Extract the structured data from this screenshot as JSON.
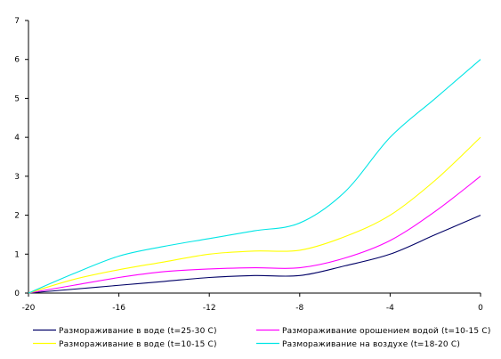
{
  "chart_data": {
    "type": "line",
    "title": "",
    "xlabel": "",
    "ylabel": "",
    "xlim": [
      -20,
      0
    ],
    "ylim": [
      0,
      7
    ],
    "x_ticks": [
      "-20",
      "-16",
      "-12",
      "-8",
      "-4",
      "0"
    ],
    "y_ticks": [
      "0",
      "1",
      "2",
      "3",
      "4",
      "5",
      "6",
      "7"
    ],
    "grid": false,
    "legend_position": "bottom",
    "series": [
      {
        "name": "Размораживание в воде (t=25-30 С)",
        "color": "#000066",
        "x": [
          -20,
          -18,
          -16,
          -14,
          -12,
          -10,
          -8,
          -6,
          -4,
          -2,
          0
        ],
        "y": [
          0,
          0.1,
          0.2,
          0.3,
          0.4,
          0.45,
          0.45,
          0.7,
          1.0,
          1.5,
          2.0
        ]
      },
      {
        "name": "Размораживание орошением водой (t=10-15 С)",
        "color": "#ff00ff",
        "x": [
          -20,
          -18,
          -16,
          -14,
          -12,
          -10,
          -8,
          -6,
          -4,
          -2,
          0
        ],
        "y": [
          0,
          0.2,
          0.4,
          0.55,
          0.62,
          0.65,
          0.65,
          0.9,
          1.35,
          2.1,
          3.0
        ]
      },
      {
        "name": "Размораживание  в воде (t=10-15  С)",
        "color": "#ffff00",
        "x": [
          -20,
          -18,
          -16,
          -14,
          -12,
          -10,
          -8,
          -6,
          -4,
          -2,
          0
        ],
        "y": [
          0,
          0.35,
          0.6,
          0.8,
          1.0,
          1.08,
          1.1,
          1.45,
          2.0,
          2.9,
          4.0
        ]
      },
      {
        "name": "Размораживание на воздухе (t=18-20 С)",
        "color": "#00e5e5",
        "x": [
          -20,
          -18,
          -16,
          -14,
          -12,
          -10,
          -8,
          -6,
          -4,
          -2,
          0
        ],
        "y": [
          0,
          0.5,
          0.95,
          1.2,
          1.4,
          1.6,
          1.8,
          2.6,
          4.0,
          5.0,
          6.0
        ]
      }
    ]
  }
}
